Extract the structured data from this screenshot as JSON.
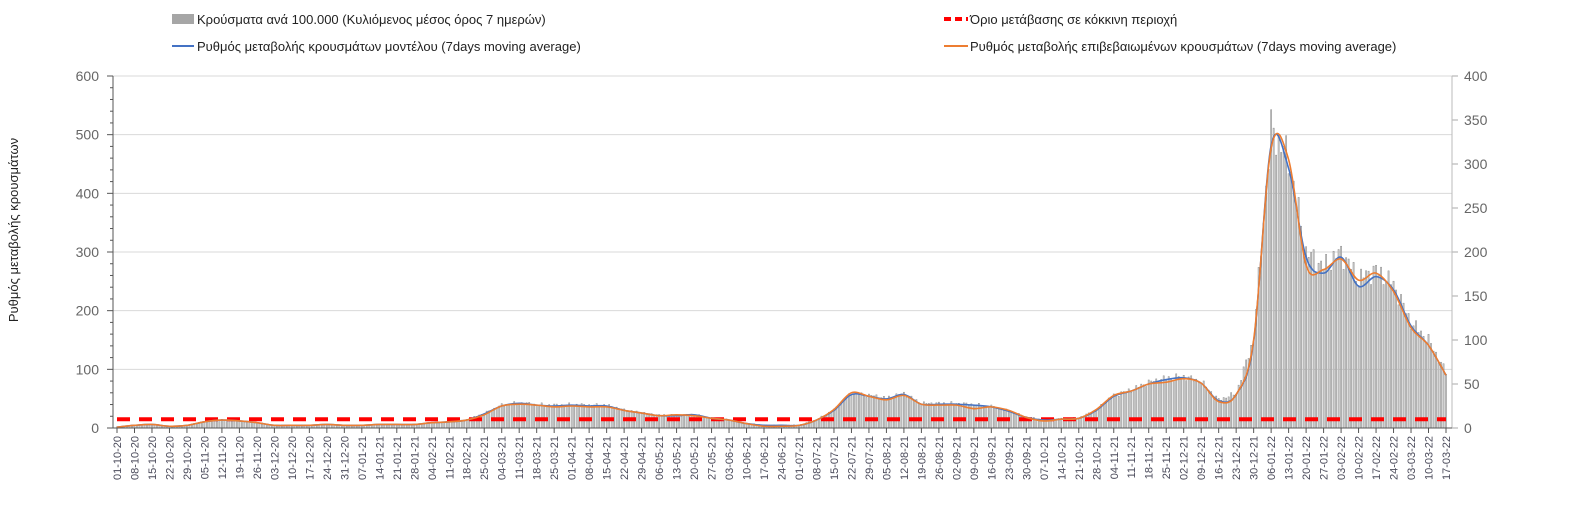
{
  "chart_data": {
    "type": "bar+line",
    "title": "",
    "ylabel": "Ρυθμός μεταβολής κρουσμάτων",
    "ylabel_right": "",
    "ylim": [
      0,
      600
    ],
    "ylim_right": [
      0,
      400
    ],
    "yticks": [
      0,
      100,
      200,
      300,
      400,
      500,
      600
    ],
    "yticks_right": [
      0,
      50,
      100,
      150,
      200,
      250,
      300,
      350,
      400
    ],
    "grid": true,
    "legend_position": "top",
    "legend": {
      "bars": "Κρούσματα ανά 100.000 (Κυλιόμενος μέσος όρος 7 ημερών)",
      "threshold": "Όριο μετάβασης σε κόκκινη περιοχή",
      "model": "Ρυθμός μεταβολής κρουσμάτων μοντέλου (7days moving average)",
      "confirmed": "Ρυθμός μεταβολής επιβεβαιωμένων κρουσμάτων (7days moving average)"
    },
    "colors": {
      "bars": "#a6a6a6",
      "threshold": "#ff0000",
      "model": "#4472c4",
      "confirmed": "#ed7d31"
    },
    "x_labels": [
      "01-10-20",
      "08-10-20",
      "15-10-20",
      "22-10-20",
      "29-10-20",
      "05-11-20",
      "12-11-20",
      "19-11-20",
      "26-11-20",
      "03-12-20",
      "10-12-20",
      "17-12-20",
      "24-12-20",
      "31-12-20",
      "07-01-21",
      "14-01-21",
      "21-01-21",
      "28-01-21",
      "04-02-21",
      "11-02-21",
      "18-02-21",
      "25-02-21",
      "04-03-21",
      "11-03-21",
      "18-03-21",
      "25-03-21",
      "01-04-21",
      "08-04-21",
      "15-04-21",
      "22-04-21",
      "29-04-21",
      "06-05-21",
      "13-05-21",
      "20-05-21",
      "27-05-21",
      "03-06-21",
      "10-06-21",
      "17-06-21",
      "24-06-21",
      "01-07-21",
      "08-07-21",
      "15-07-21",
      "22-07-21",
      "29-07-21",
      "05-08-21",
      "12-08-21",
      "19-08-21",
      "26-08-21",
      "02-09-21",
      "09-09-21",
      "16-09-21",
      "23-09-21",
      "30-09-21",
      "07-10-21",
      "14-10-21",
      "21-10-21",
      "28-10-21",
      "04-11-21",
      "11-11-21",
      "18-11-21",
      "25-11-21",
      "02-12-21",
      "09-12-21",
      "16-12-21",
      "23-12-21",
      "30-12-21",
      "06-01-22",
      "13-01-22",
      "20-01-22",
      "27-01-22",
      "03-02-22",
      "10-02-22",
      "17-02-22",
      "24-02-22",
      "03-03-22",
      "10-03-22",
      "17-03-22"
    ],
    "series": [
      {
        "name": "Κρούσματα ανά 100.000 (Κυλιόμενος μέσος όρος 7 ημερών)",
        "axis": "left",
        "kind": "bar",
        "sampling": "weekly (daily bars)",
        "values": [
          2,
          5,
          6,
          3,
          5,
          11,
          14,
          12,
          9,
          5,
          5,
          5,
          6,
          5,
          5,
          6,
          6,
          6,
          9,
          11,
          14,
          25,
          39,
          43,
          40,
          39,
          40,
          39,
          39,
          31,
          26,
          22,
          22,
          23,
          17,
          14,
          8,
          5,
          5,
          5,
          14,
          31,
          59,
          56,
          51,
          59,
          42,
          42,
          42,
          40,
          37,
          29,
          19,
          14,
          16,
          17,
          31,
          56,
          65,
          78,
          85,
          88,
          79,
          48,
          59,
          152,
          510,
          460,
          300,
          275,
          300,
          255,
          270,
          245,
          180,
          150,
          95
        ]
      },
      {
        "name": "Ρυθμός μεταβολής κρουσμάτων μοντέλου (7days moving average)",
        "axis": "right",
        "kind": "line",
        "values": [
          1,
          3,
          4,
          2,
          3,
          7,
          9,
          8,
          6,
          3,
          3,
          3,
          4,
          3,
          3,
          4,
          4,
          4,
          6,
          7,
          9,
          16,
          25,
          28,
          26,
          25,
          26,
          25,
          25,
          20,
          17,
          14,
          14,
          15,
          11,
          9,
          5,
          3,
          3,
          3,
          9,
          20,
          38,
          36,
          33,
          38,
          27,
          27,
          27,
          26,
          24,
          19,
          12,
          9,
          10,
          11,
          20,
          36,
          42,
          50,
          55,
          57,
          51,
          31,
          38,
          98,
          321,
          295,
          194,
          176,
          194,
          161,
          172,
          157,
          116,
          94,
          60
        ]
      },
      {
        "name": "Ρυθμός μεταβολής επιβεβαιωμένων κρουσμάτων (7days moving average)",
        "axis": "right",
        "kind": "line",
        "values": [
          1,
          3,
          4,
          2,
          3,
          7,
          9,
          8,
          6,
          3,
          3,
          3,
          4,
          3,
          3,
          4,
          4,
          4,
          6,
          7,
          9,
          15,
          25,
          27,
          26,
          24,
          25,
          24,
          24,
          20,
          17,
          14,
          15,
          14,
          11,
          9,
          5,
          2,
          2,
          3,
          9,
          21,
          40,
          36,
          32,
          37,
          27,
          26,
          26,
          22,
          24,
          20,
          12,
          8,
          10,
          11,
          21,
          37,
          42,
          50,
          52,
          56,
          51,
          30,
          38,
          100,
          318,
          305,
          185,
          180,
          192,
          168,
          176,
          155,
          114,
          94,
          60
        ]
      },
      {
        "name": "Όριο μετάβασης σε κόκκινη περιοχή",
        "axis": "right",
        "kind": "threshold",
        "value": 10
      }
    ]
  }
}
